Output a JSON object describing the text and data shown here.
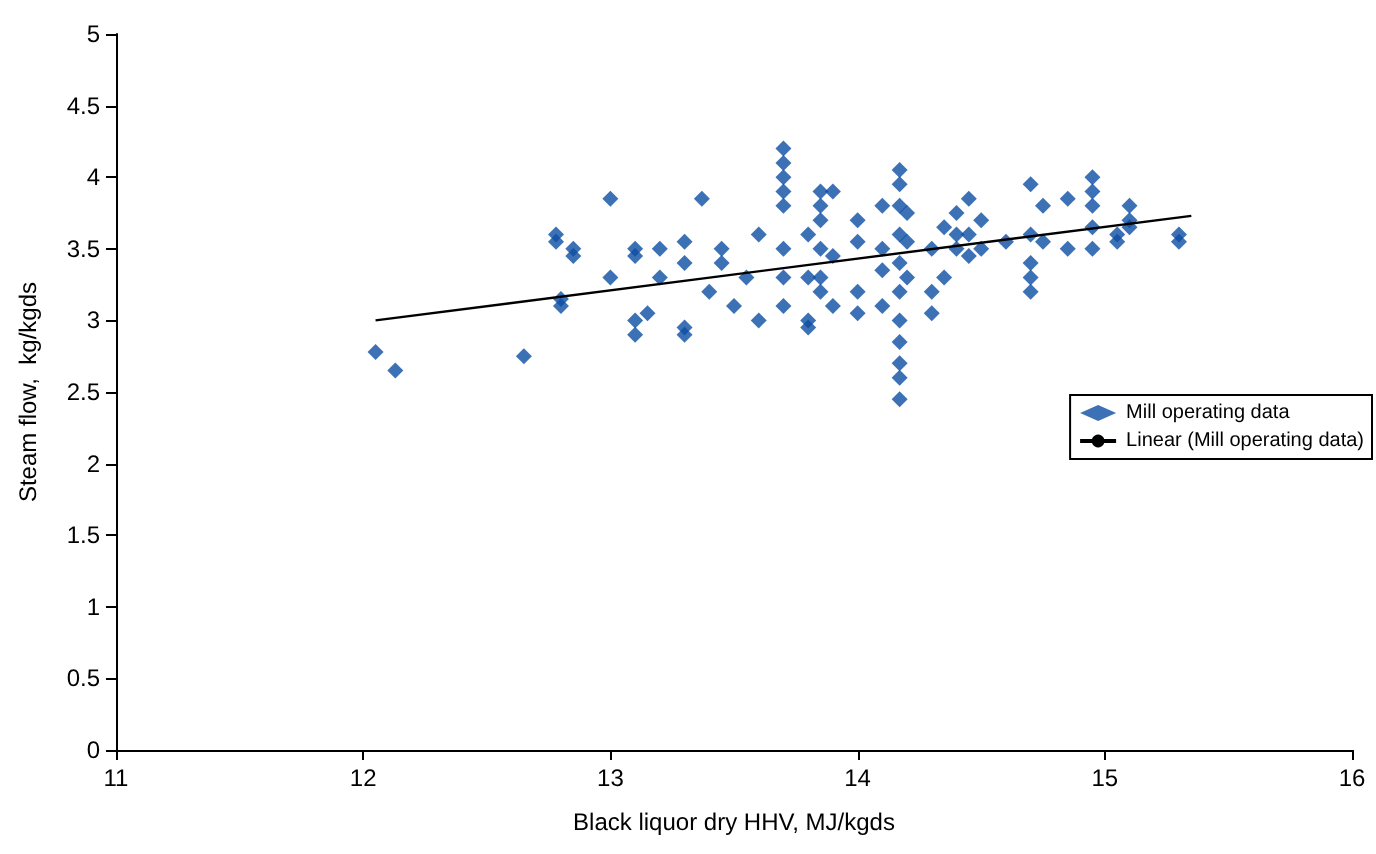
{
  "chart_data": {
    "type": "scatter",
    "xlabel": "Black liquor dry HHV, MJ/kgds",
    "ylabel": "Steam flow,  kg/kgds",
    "xlim": [
      11,
      16
    ],
    "xticks": [
      11,
      12,
      13,
      14,
      15,
      16
    ],
    "ylim": [
      0,
      5
    ],
    "yticks": [
      0,
      0.5,
      1,
      1.5,
      2,
      2.5,
      3,
      3.5,
      4,
      4.5,
      5
    ],
    "grid": false,
    "legend": "right",
    "marker": "diamond",
    "series": [
      {
        "name": "Mill operating data",
        "color": "#0b4ea2",
        "x": [
          12.05,
          12.13,
          12.65,
          12.78,
          12.78,
          12.8,
          12.8,
          12.85,
          12.85,
          13.0,
          13.0,
          13.1,
          13.1,
          13.1,
          13.1,
          13.15,
          13.2,
          13.2,
          13.3,
          13.3,
          13.3,
          13.3,
          13.37,
          13.4,
          13.45,
          13.45,
          13.5,
          13.55,
          13.6,
          13.6,
          13.7,
          13.7,
          13.7,
          13.7,
          13.7,
          13.7,
          13.7,
          13.7,
          13.8,
          13.8,
          13.8,
          13.8,
          13.85,
          13.85,
          13.85,
          13.85,
          13.85,
          13.85,
          13.9,
          13.9,
          13.9,
          14.0,
          14.0,
          14.0,
          14.0,
          14.1,
          14.1,
          14.1,
          14.1,
          14.17,
          14.17,
          14.17,
          14.17,
          14.17,
          14.17,
          14.17,
          14.17,
          14.17,
          14.17,
          14.17,
          14.2,
          14.2,
          14.2,
          14.3,
          14.3,
          14.3,
          14.35,
          14.35,
          14.4,
          14.4,
          14.4,
          14.45,
          14.45,
          14.45,
          14.5,
          14.5,
          14.6,
          14.7,
          14.7,
          14.7,
          14.7,
          14.7,
          14.75,
          14.75,
          14.85,
          14.85,
          14.95,
          14.95,
          14.95,
          14.95,
          14.95,
          15.05,
          15.05,
          15.1,
          15.1,
          15.1,
          15.3,
          15.3
        ],
        "values": [
          2.78,
          2.65,
          2.75,
          3.6,
          3.55,
          3.15,
          3.1,
          3.5,
          3.45,
          3.85,
          3.3,
          3.5,
          3.45,
          3.0,
          2.9,
          3.05,
          3.5,
          3.3,
          3.55,
          3.4,
          2.95,
          2.9,
          3.85,
          3.2,
          3.5,
          3.4,
          3.1,
          3.3,
          3.6,
          3.0,
          4.2,
          4.1,
          4.0,
          3.9,
          3.8,
          3.5,
          3.3,
          3.1,
          3.6,
          3.3,
          3.0,
          2.95,
          3.9,
          3.8,
          3.7,
          3.5,
          3.3,
          3.2,
          3.9,
          3.45,
          3.1,
          3.7,
          3.55,
          3.2,
          3.05,
          3.8,
          3.5,
          3.35,
          3.1,
          4.05,
          3.95,
          3.8,
          3.6,
          3.4,
          3.2,
          3.0,
          2.85,
          2.7,
          2.6,
          2.45,
          3.75,
          3.55,
          3.3,
          3.5,
          3.2,
          3.05,
          3.65,
          3.3,
          3.75,
          3.6,
          3.5,
          3.85,
          3.6,
          3.45,
          3.7,
          3.5,
          3.55,
          3.95,
          3.6,
          3.4,
          3.3,
          3.2,
          3.55,
          3.8,
          3.85,
          3.5,
          4.0,
          3.9,
          3.8,
          3.65,
          3.5,
          3.6,
          3.55,
          3.8,
          3.7,
          3.65,
          3.6,
          3.55
        ]
      },
      {
        "name": "Linear (Mill operating data)",
        "type": "line",
        "color": "#000000",
        "marker": "none",
        "x": [
          12.05,
          15.35
        ],
        "values": [
          3.0,
          3.73
        ]
      }
    ]
  }
}
